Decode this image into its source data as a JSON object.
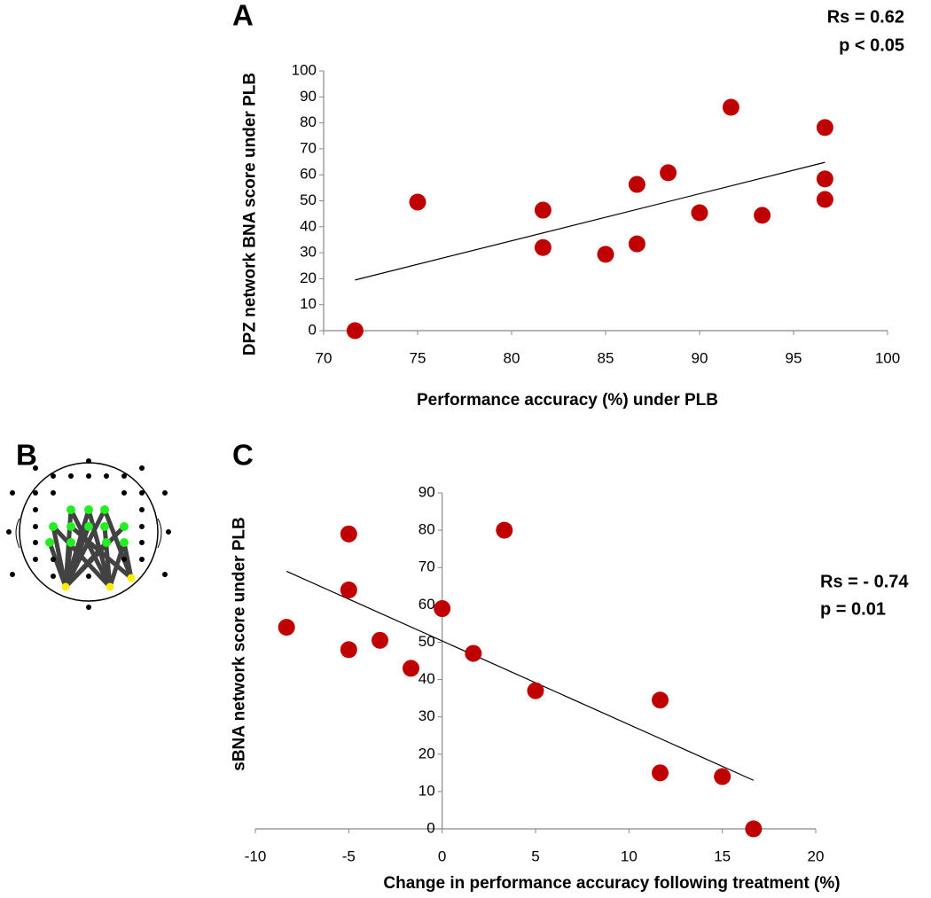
{
  "chart_data": [
    {
      "type": "scatter",
      "panel_label": "A",
      "x_label": "Performance accuracy (%) under PLB",
      "y_label": "DPZ network BNA score under PLB",
      "annotations": [
        "Rs = 0.62",
        "p < 0.05"
      ],
      "x": [
        71.67,
        75,
        81.67,
        81.67,
        85,
        86.67,
        86.67,
        88.33,
        90,
        91.67,
        93.33,
        96.67,
        96.67,
        96.67
      ],
      "y": [
        0,
        49.5,
        46.4,
        32,
        29.4,
        56.3,
        33.4,
        60.8,
        45.4,
        86,
        44.4,
        78.2,
        58.4,
        50.5
      ],
      "color": "#c00000",
      "trendline": {
        "x": [
          71.67,
          96.67
        ],
        "y": [
          19.5,
          64.8
        ],
        "color": "#000000"
      },
      "xlim": [
        70,
        100
      ],
      "xticks": [
        70,
        75,
        80,
        85,
        90,
        95,
        100
      ],
      "ylim": [
        0,
        100
      ],
      "yticks": [
        0,
        10,
        20,
        30,
        40,
        50,
        60,
        70,
        80,
        90,
        100
      ]
    },
    {
      "type": "scatter",
      "panel_label": "C",
      "x_label": "Change in performance accuracy following treatment (%)",
      "y_label": "sBNA network  score under PLB",
      "annotations": [
        "Rs = - 0.74",
        "p = 0.01"
      ],
      "x": [
        -8.33,
        -5,
        -5,
        -5,
        -3.33,
        -1.67,
        0,
        1.67,
        3.33,
        5,
        11.67,
        11.67,
        15,
        16.67
      ],
      "y": [
        54,
        79,
        64,
        48,
        50.5,
        43,
        59,
        47,
        80,
        37,
        34.5,
        15,
        14,
        0
      ],
      "color": "#c00000",
      "trendline": {
        "x": [
          -8.33,
          16.67
        ],
        "y": [
          69,
          13
        ],
        "color": "#000000"
      },
      "xlim": [
        -10,
        20
      ],
      "xticks": [
        -10,
        -5,
        0,
        5,
        10,
        15,
        20
      ],
      "ylim": [
        0,
        90
      ],
      "yticks": [
        0,
        10,
        20,
        30,
        40,
        50,
        60,
        70,
        80,
        90
      ]
    }
  ],
  "head_diagram": {
    "panel_label": "B"
  }
}
